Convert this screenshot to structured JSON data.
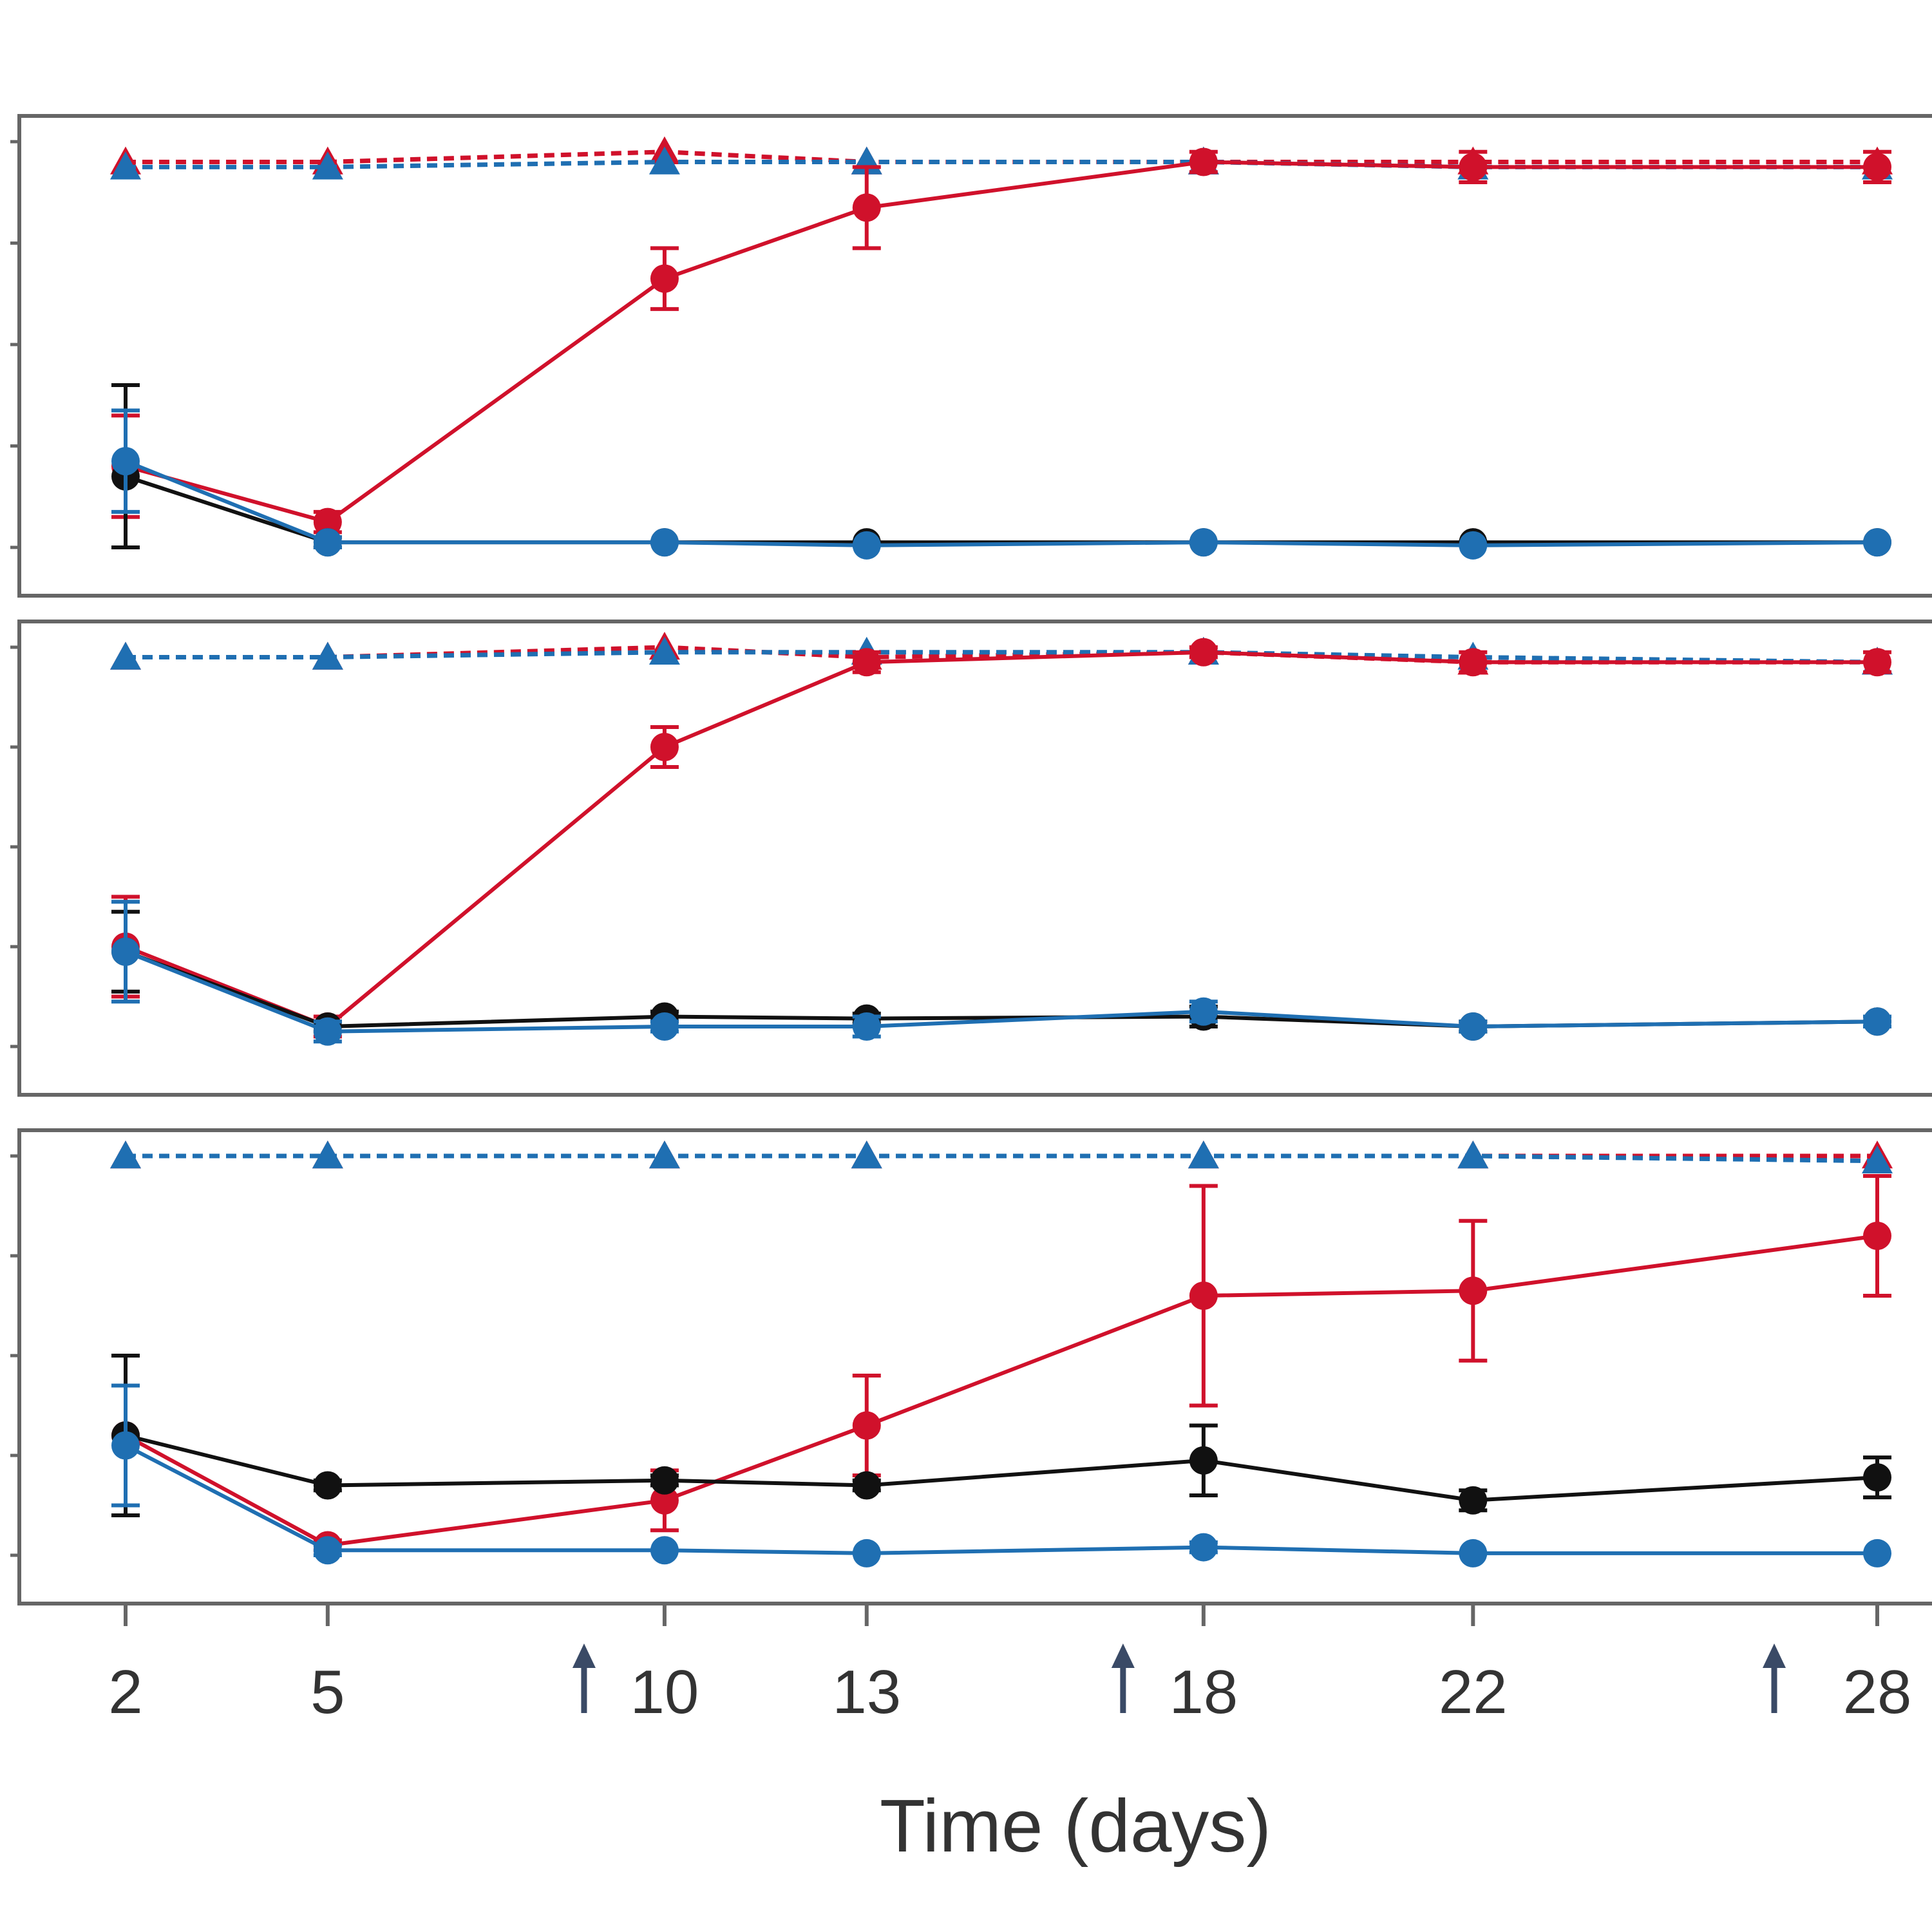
{
  "chart_data": {
    "type": "line",
    "xlabel": "Time (days)",
    "x": [
      2,
      5,
      10,
      13,
      18,
      22,
      28
    ],
    "x_tick_labels": [
      "2",
      "5",
      "10",
      "13",
      "18",
      "22",
      "28"
    ],
    "x_arrows_at": [
      10,
      18,
      28
    ],
    "y_range": [
      0,
      4
    ],
    "grid": false,
    "legend": "none",
    "colors": {
      "red": "#d0112b",
      "blue": "#1f6fb2",
      "black": "#111111",
      "axis": "#666666"
    },
    "panels": [
      {
        "series": [
          {
            "color": "red",
            "style": "dashed",
            "marker": "triangle",
            "values": [
              3.8,
              3.8,
              3.9,
              3.8,
              3.8,
              3.8,
              3.8
            ]
          },
          {
            "color": "blue",
            "style": "dashed",
            "marker": "triangle",
            "values": [
              3.75,
              3.75,
              3.8,
              3.8,
              3.8,
              3.75,
              3.75
            ]
          },
          {
            "color": "red",
            "style": "solid",
            "marker": "circle",
            "values": [
              0.8,
              0.25,
              2.65,
              3.35,
              3.8,
              3.75,
              3.75
            ],
            "errors": [
              0.5,
              0.1,
              0.3,
              0.4,
              0.1,
              0.15,
              0.15
            ]
          },
          {
            "color": "black",
            "style": "solid",
            "marker": "circle",
            "values": [
              0.7,
              0.05,
              0.05,
              0.05,
              0.05,
              0.05,
              0.05
            ],
            "errors": [
              0.9,
              0.05,
              0.02,
              0.02,
              0.02,
              0.02,
              0.02
            ]
          },
          {
            "color": "blue",
            "style": "solid",
            "marker": "circle",
            "values": [
              0.85,
              0.05,
              0.05,
              0.02,
              0.05,
              0.02,
              0.05
            ],
            "errors": [
              0.5,
              0.05,
              0.02,
              0.02,
              0.02,
              0.02,
              0.02
            ]
          }
        ]
      },
      {
        "series": [
          {
            "color": "red",
            "style": "dashed",
            "marker": "triangle",
            "values": [
              3.9,
              3.9,
              4.0,
              3.9,
              3.95,
              3.85,
              3.85
            ]
          },
          {
            "color": "blue",
            "style": "dashed",
            "marker": "triangle",
            "values": [
              3.9,
              3.9,
              3.95,
              3.95,
              3.95,
              3.9,
              3.85
            ]
          },
          {
            "color": "red",
            "style": "solid",
            "marker": "circle",
            "values": [
              1.0,
              0.2,
              3.0,
              3.85,
              3.95,
              3.85,
              3.85
            ],
            "errors": [
              0.5,
              0.1,
              0.2,
              0.1,
              0.05,
              0.1,
              0.1
            ]
          },
          {
            "color": "black",
            "style": "solid",
            "marker": "circle",
            "values": [
              0.95,
              0.2,
              0.3,
              0.28,
              0.3,
              0.2,
              0.25
            ],
            "errors": [
              0.4,
              0.05,
              0.05,
              0.05,
              0.1,
              0.05,
              0.05
            ]
          },
          {
            "color": "blue",
            "style": "solid",
            "marker": "circle",
            "values": [
              0.95,
              0.15,
              0.2,
              0.2,
              0.35,
              0.2,
              0.25
            ],
            "errors": [
              0.5,
              0.1,
              0.05,
              0.1,
              0.1,
              0.05,
              0.05
            ]
          }
        ]
      },
      {
        "series": [
          {
            "color": "red",
            "style": "dashed",
            "marker": "triangle",
            "values": [
              4.0,
              4.0,
              4.0,
              4.0,
              4.0,
              4.0,
              4.0
            ]
          },
          {
            "color": "blue",
            "style": "dashed",
            "marker": "triangle",
            "values": [
              4.0,
              4.0,
              4.0,
              4.0,
              4.0,
              4.0,
              3.95
            ]
          },
          {
            "color": "red",
            "style": "solid",
            "marker": "circle",
            "values": [
              1.2,
              0.1,
              0.55,
              1.3,
              2.6,
              2.65,
              3.2
            ],
            "errors": [
              0.8,
              0.05,
              0.3,
              0.5,
              1.1,
              0.7,
              0.6
            ]
          },
          {
            "color": "black",
            "style": "solid",
            "marker": "circle",
            "values": [
              1.2,
              0.7,
              0.75,
              0.7,
              0.95,
              0.55,
              0.78
            ],
            "errors": [
              0.8,
              0.05,
              0.05,
              0.05,
              0.35,
              0.1,
              0.2
            ]
          },
          {
            "color": "blue",
            "style": "solid",
            "marker": "circle",
            "values": [
              1.1,
              0.05,
              0.05,
              0.02,
              0.08,
              0.02,
              0.02
            ],
            "errors": [
              0.6,
              0.05,
              0.02,
              0.02,
              0.05,
              0.02,
              0.02
            ]
          }
        ]
      }
    ]
  }
}
